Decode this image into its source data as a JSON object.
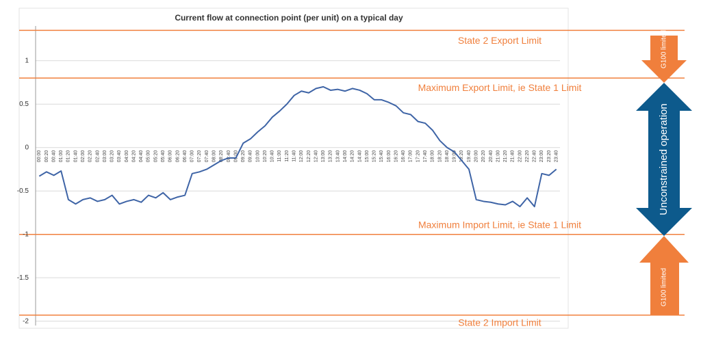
{
  "chart_data": {
    "type": "line",
    "title": "Current flow at connection point (per unit) on a typical day",
    "categories": [
      "00:00",
      "00:20",
      "00:40",
      "01:00",
      "01:20",
      "01:40",
      "02:00",
      "02:20",
      "02:40",
      "03:00",
      "03:20",
      "03:40",
      "04:00",
      "04:20",
      "04:40",
      "05:00",
      "05:20",
      "05:40",
      "06:00",
      "06:20",
      "06:40",
      "07:00",
      "07:20",
      "07:40",
      "08:00",
      "08:20",
      "08:40",
      "09:00",
      "09:20",
      "09:40",
      "10:00",
      "10:20",
      "10:40",
      "11:00",
      "11:20",
      "11:40",
      "12:00",
      "12:20",
      "12:40",
      "13:00",
      "13:20",
      "13:40",
      "14:00",
      "14:20",
      "14:40",
      "15:00",
      "15:20",
      "15:40",
      "16:00",
      "16:20",
      "16:40",
      "17:00",
      "17:20",
      "17:40",
      "18:00",
      "18:20",
      "18:40",
      "19:00",
      "19:20",
      "19:40",
      "20:00",
      "20:20",
      "20:40",
      "21:00",
      "21:20",
      "21:40",
      "22:00",
      "22:20",
      "22:40",
      "23:00",
      "23:20",
      "23:40"
    ],
    "values": [
      -0.33,
      -0.28,
      -0.32,
      -0.27,
      -0.6,
      -0.65,
      -0.6,
      -0.58,
      -0.62,
      -0.6,
      -0.55,
      -0.65,
      -0.62,
      -0.6,
      -0.63,
      -0.55,
      -0.58,
      -0.52,
      -0.6,
      -0.57,
      -0.55,
      -0.3,
      -0.28,
      -0.25,
      -0.2,
      -0.15,
      -0.12,
      -0.12,
      0.05,
      0.1,
      0.18,
      0.25,
      0.35,
      0.42,
      0.5,
      0.6,
      0.65,
      0.63,
      0.68,
      0.7,
      0.66,
      0.67,
      0.65,
      0.68,
      0.66,
      0.62,
      0.55,
      0.55,
      0.52,
      0.48,
      0.4,
      0.38,
      0.3,
      0.28,
      0.2,
      0.08,
      0.0,
      -0.05,
      -0.15,
      -0.25,
      -0.6,
      -0.62,
      -0.63,
      -0.65,
      -0.66,
      -0.62,
      -0.68,
      -0.58,
      -0.68,
      -0.3,
      -0.32,
      -0.25
    ],
    "color": "#3e64a6",
    "ylim": [
      -2.05,
      1.4
    ],
    "yticks": [
      -2,
      -1.5,
      -1,
      -0.5,
      0,
      0.5,
      1
    ],
    "grid": true,
    "limits": [
      {
        "label": "State 2 Export Limit",
        "value": 1.35
      },
      {
        "label": "Maximum Export Limit, ie State 1 Limit",
        "value": 0.8
      },
      {
        "label": "Maximum Import Limit, ie State 1 Limit",
        "value": -1
      },
      {
        "label": "State 2 Import Limit",
        "value": -1.93
      }
    ],
    "limit_color": "#f07f3c",
    "annotations": [
      "G100 limited",
      "Unconstrained operation",
      "G100 limited"
    ]
  }
}
